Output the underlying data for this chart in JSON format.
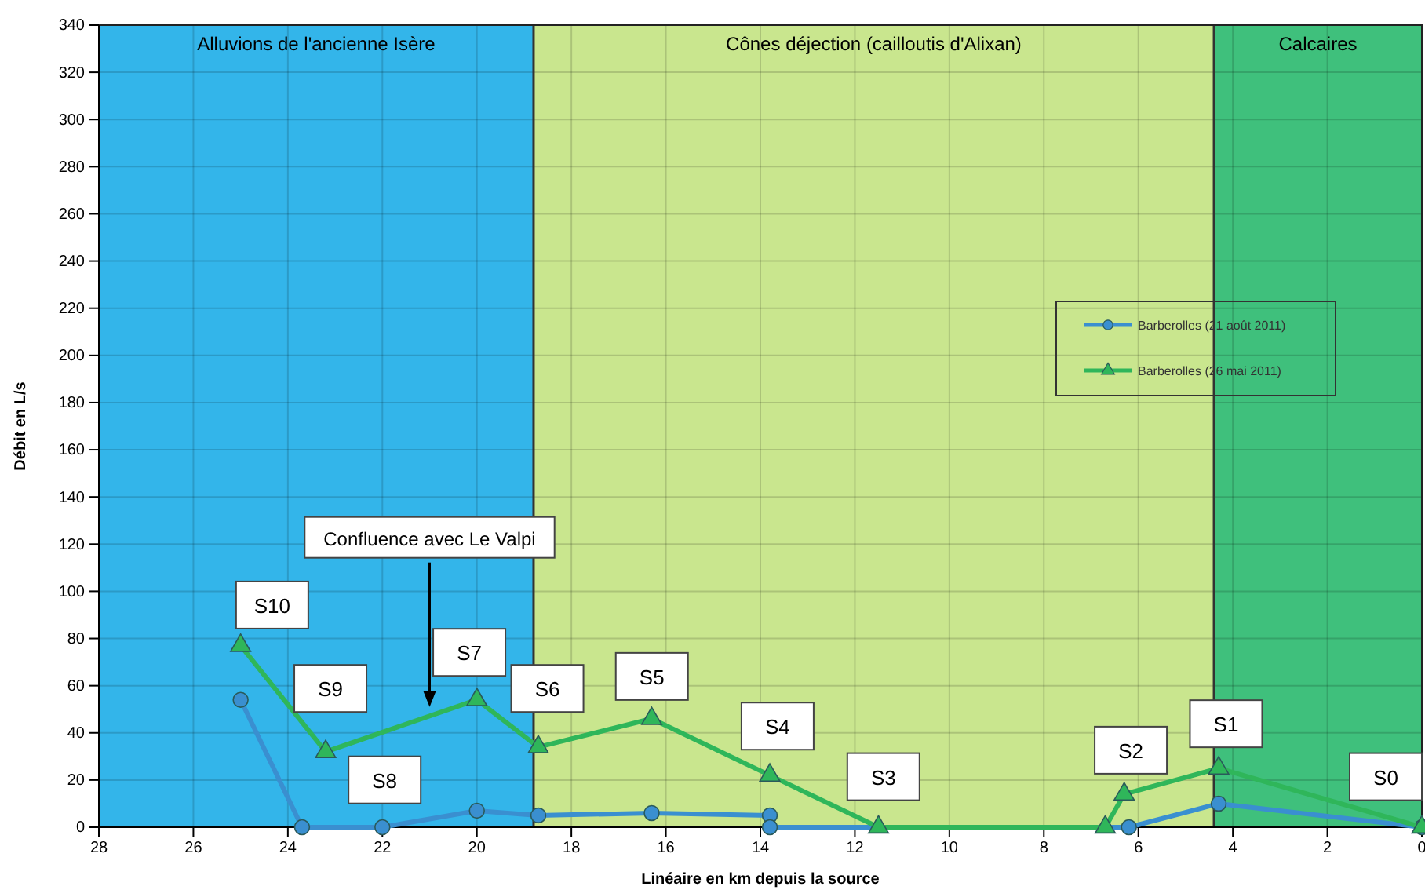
{
  "chart_data": {
    "type": "line",
    "xlabel": "Linéaire en km depuis la source",
    "ylabel": "Débit en L/s",
    "xlim": [
      28,
      0
    ],
    "xticks": [
      28,
      26,
      24,
      22,
      20,
      18,
      16,
      14,
      12,
      10,
      8,
      6,
      4,
      2,
      0
    ],
    "ylim": [
      0,
      340
    ],
    "yticks": [
      0,
      20,
      40,
      60,
      80,
      100,
      120,
      140,
      160,
      180,
      200,
      220,
      240,
      260,
      280,
      300,
      320,
      340
    ],
    "grid": true,
    "legend": "right",
    "series": [
      {
        "name": "Barberolles (21 août 2011)",
        "color": "#3a8fd0",
        "marker": "circle",
        "x": [
          25,
          23.7,
          22,
          20,
          18.7,
          16.3,
          13.8,
          13.8,
          6.2,
          4.3,
          0
        ],
        "values": [
          54,
          0,
          0,
          7,
          5,
          6,
          5,
          0,
          0,
          10,
          0
        ]
      },
      {
        "name": "Barberolles (26 mai 2011)",
        "color": "#2fb65a",
        "marker": "triangle",
        "x": [
          25,
          23.2,
          20,
          18.7,
          16.3,
          13.8,
          11.5,
          6.7,
          6.3,
          4.3,
          0
        ],
        "values": [
          77,
          32,
          54,
          34,
          46,
          22,
          0,
          0,
          14,
          25,
          0
        ]
      }
    ],
    "bands": [
      {
        "axis": "x",
        "from": 28,
        "to": 18.8,
        "label": "Alluvions de l'ancienne Isère",
        "color": "#33b5ea"
      },
      {
        "axis": "x",
        "from": 18.8,
        "to": 4.4,
        "label": "Cônes déjection (cailloutis d'Alixan)",
        "color": "#c9e68e"
      },
      {
        "axis": "x",
        "from": 4.4,
        "to": 0,
        "label": "Calcaires",
        "color": "#3fc07c"
      }
    ],
    "ref_lines": [
      {
        "axis": "x",
        "value": 18.8,
        "color": "#333333"
      },
      {
        "axis": "x",
        "value": 4.4,
        "color": "#333333"
      }
    ],
    "annotations": [
      "S10",
      "S9",
      "S8",
      "S7",
      "S6",
      "S5",
      "S4",
      "S3",
      "S2",
      "S1",
      "S0",
      {
        "text": "Confluence avec Le Valpi",
        "x": 21,
        "y": 51
      }
    ]
  }
}
